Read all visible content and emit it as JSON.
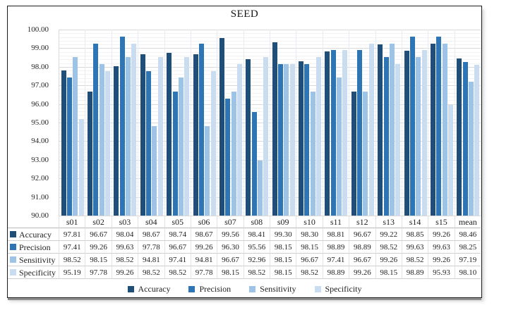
{
  "chart_data": {
    "type": "bar",
    "title": "SEED",
    "categories": [
      "s01",
      "s02",
      "s03",
      "s04",
      "s05",
      "s06",
      "s07",
      "s08",
      "s09",
      "s10",
      "s11",
      "s12",
      "s13",
      "s14",
      "s15",
      "mean"
    ],
    "series": [
      {
        "name": "Accuracy",
        "color": "#1F4E79",
        "values": [
          97.81,
          96.67,
          98.04,
          98.67,
          98.74,
          98.67,
          99.56,
          98.41,
          99.3,
          98.3,
          98.81,
          96.67,
          99.22,
          98.85,
          99.26,
          98.46
        ]
      },
      {
        "name": "Precision",
        "color": "#2E75B6",
        "values": [
          97.41,
          99.26,
          99.63,
          97.78,
          96.67,
          99.26,
          96.3,
          95.56,
          98.15,
          98.15,
          98.89,
          98.89,
          98.52,
          99.63,
          99.63,
          98.25
        ]
      },
      {
        "name": "Sensitivity",
        "color": "#9DC3E6",
        "values": [
          98.52,
          98.15,
          98.52,
          94.81,
          97.41,
          94.81,
          96.67,
          92.96,
          98.15,
          96.67,
          97.41,
          96.67,
          99.26,
          98.52,
          99.26,
          97.19
        ]
      },
      {
        "name": "Specificity",
        "color": "#C9DCF0",
        "values": [
          95.19,
          97.78,
          99.26,
          98.52,
          98.52,
          97.78,
          98.15,
          98.52,
          98.15,
          98.52,
          98.89,
          99.26,
          98.15,
          98.89,
          95.93,
          98.1
        ]
      }
    ],
    "ylim": [
      90,
      100
    ],
    "y_axis": {
      "major_step": 1,
      "minor_step": 0.2,
      "tick_labels": [
        "100.00",
        "99.00",
        "98.00",
        "97.00",
        "96.00",
        "95.00",
        "94.00",
        "93.00",
        "92.00",
        "91.00",
        "90.00"
      ]
    },
    "grid": true,
    "legend_position": "bottom",
    "data_table_shown": true
  }
}
